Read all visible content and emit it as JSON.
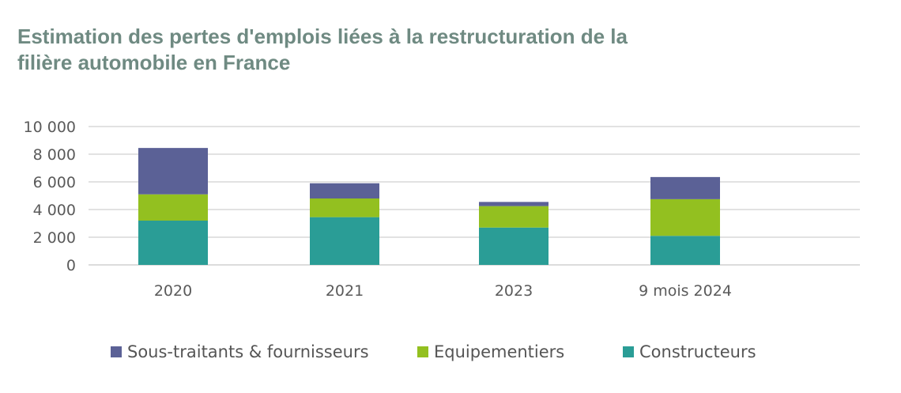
{
  "chart_data": {
    "type": "bar",
    "stacked": true,
    "title_lines": [
      "Estimation des pertes d'emplois liées à la restructuration de la",
      "filière automobile en France"
    ],
    "categories": [
      "2020",
      "2021",
      "2023",
      "9 mois 2024"
    ],
    "series": [
      {
        "name": "Constructeurs",
        "color": "#2a9d96",
        "values": [
          3200,
          3450,
          2700,
          2100
        ]
      },
      {
        "name": "Equipementiers",
        "color": "#93c020",
        "values": [
          1900,
          1350,
          1550,
          2650
        ]
      },
      {
        "name": "Sous-traitants & fournisseurs",
        "color": "#5b6196",
        "values": [
          3350,
          1100,
          300,
          1600
        ]
      }
    ],
    "legend_order": [
      "Sous-traitants & fournisseurs",
      "Equipementiers",
      "Constructeurs"
    ],
    "yticks": [
      "0",
      "2 000",
      "4 000",
      "6 000",
      "8 000",
      "10 000"
    ],
    "ylim": [
      0,
      10000
    ],
    "grid": true,
    "legend_position": "bottom",
    "xlabel": "",
    "ylabel": ""
  }
}
